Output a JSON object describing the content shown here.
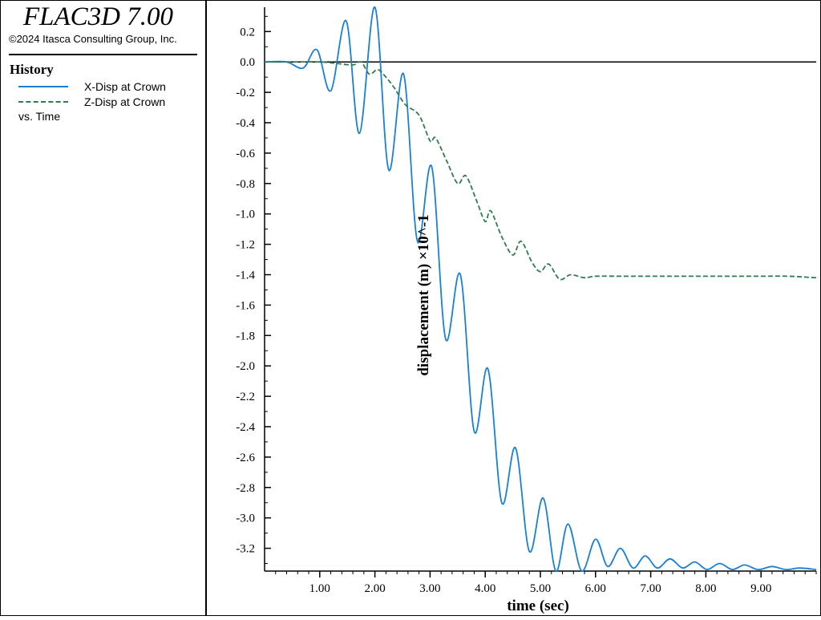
{
  "app": {
    "title": "FLAC3D 7.00",
    "copyright": "©2024 Itasca Consulting Group, Inc."
  },
  "legend": {
    "heading": "History",
    "items": [
      {
        "label": "X-Disp at Crown",
        "color": "#1a7fd6",
        "style": "solid"
      },
      {
        "label": "Z-Disp at Crown",
        "color": "#2e7d4f",
        "style": "dashed"
      }
    ],
    "vs_label": "vs. Time"
  },
  "chart_data": {
    "type": "line",
    "xlabel": "time (sec)",
    "ylabel": "displacement (m) ×10^-1",
    "xlim": [
      0,
      10
    ],
    "ylim": [
      -3.35,
      0.36
    ],
    "x_ticks": [
      1,
      2,
      3,
      4,
      5,
      6,
      7,
      8,
      9
    ],
    "x_tick_labels": [
      "1.00",
      "2.00",
      "3.00",
      "4.00",
      "5.00",
      "6.00",
      "7.00",
      "8.00",
      "9.00"
    ],
    "y_ticks": [
      0.2,
      0.0,
      -0.2,
      -0.4,
      -0.6,
      -0.8,
      -1.0,
      -1.2,
      -1.4,
      -1.6,
      -1.8,
      -2.0,
      -2.2,
      -2.4,
      -2.6,
      -2.8,
      -3.0,
      -3.2
    ],
    "y_tick_labels": [
      "0.2",
      "0.0",
      "-0.2",
      "-0.4",
      "-0.6",
      "-0.8",
      "-1.0",
      "-1.2",
      "-1.4",
      "-1.6",
      "-1.8",
      "-2.0",
      "-2.2",
      "-2.4",
      "-2.6",
      "-2.8",
      "-3.0",
      "-3.2"
    ],
    "zero_line": true,
    "grid": false,
    "series": [
      {
        "name": "X-Disp at Crown",
        "color": "#1a7fd6",
        "style": "solid",
        "x": [
          0,
          0.4,
          0.7,
          0.95,
          1.2,
          1.48,
          1.72,
          2.0,
          2.25,
          2.52,
          2.77,
          3.03,
          3.28,
          3.55,
          3.8,
          4.05,
          4.3,
          4.55,
          4.8,
          5.05,
          5.28,
          5.5,
          5.75,
          6.0,
          6.22,
          6.45,
          6.68,
          6.9,
          7.12,
          7.35,
          7.58,
          7.8,
          8.02,
          8.25,
          8.48,
          8.7,
          8.95,
          9.2,
          9.45,
          9.7,
          10.0
        ],
        "y": [
          0,
          0,
          -0.04,
          0.08,
          -0.19,
          0.27,
          -0.47,
          0.36,
          -0.71,
          -0.08,
          -1.18,
          -0.69,
          -1.82,
          -1.4,
          -2.43,
          -2.02,
          -2.9,
          -2.54,
          -3.22,
          -2.87,
          -3.35,
          -3.04,
          -3.35,
          -3.14,
          -3.32,
          -3.2,
          -3.33,
          -3.25,
          -3.33,
          -3.27,
          -3.33,
          -3.29,
          -3.34,
          -3.3,
          -3.34,
          -3.31,
          -3.34,
          -3.32,
          -3.34,
          -3.33,
          -3.34
        ]
      },
      {
        "name": "Z-Disp at Crown",
        "color": "#2e7d4f",
        "style": "dashed",
        "x": [
          0,
          0.5,
          1.0,
          1.3,
          1.6,
          1.75,
          1.9,
          2.05,
          2.2,
          2.35,
          2.55,
          2.8,
          3.0,
          3.1,
          3.3,
          3.5,
          3.65,
          3.85,
          4.0,
          4.1,
          4.3,
          4.5,
          4.65,
          4.85,
          5.0,
          5.15,
          5.35,
          5.55,
          5.8,
          6.0,
          6.5,
          7.0,
          7.5,
          8.0,
          8.5,
          9.0,
          9.5,
          10.0
        ],
        "y": [
          0,
          0,
          0,
          -0.01,
          -0.02,
          0.0,
          -0.08,
          -0.05,
          -0.1,
          -0.17,
          -0.28,
          -0.35,
          -0.52,
          -0.5,
          -0.65,
          -0.8,
          -0.75,
          -0.92,
          -1.05,
          -0.98,
          -1.15,
          -1.27,
          -1.18,
          -1.32,
          -1.38,
          -1.33,
          -1.43,
          -1.4,
          -1.42,
          -1.41,
          -1.41,
          -1.41,
          -1.41,
          -1.41,
          -1.41,
          -1.41,
          -1.41,
          -1.42
        ]
      }
    ]
  }
}
